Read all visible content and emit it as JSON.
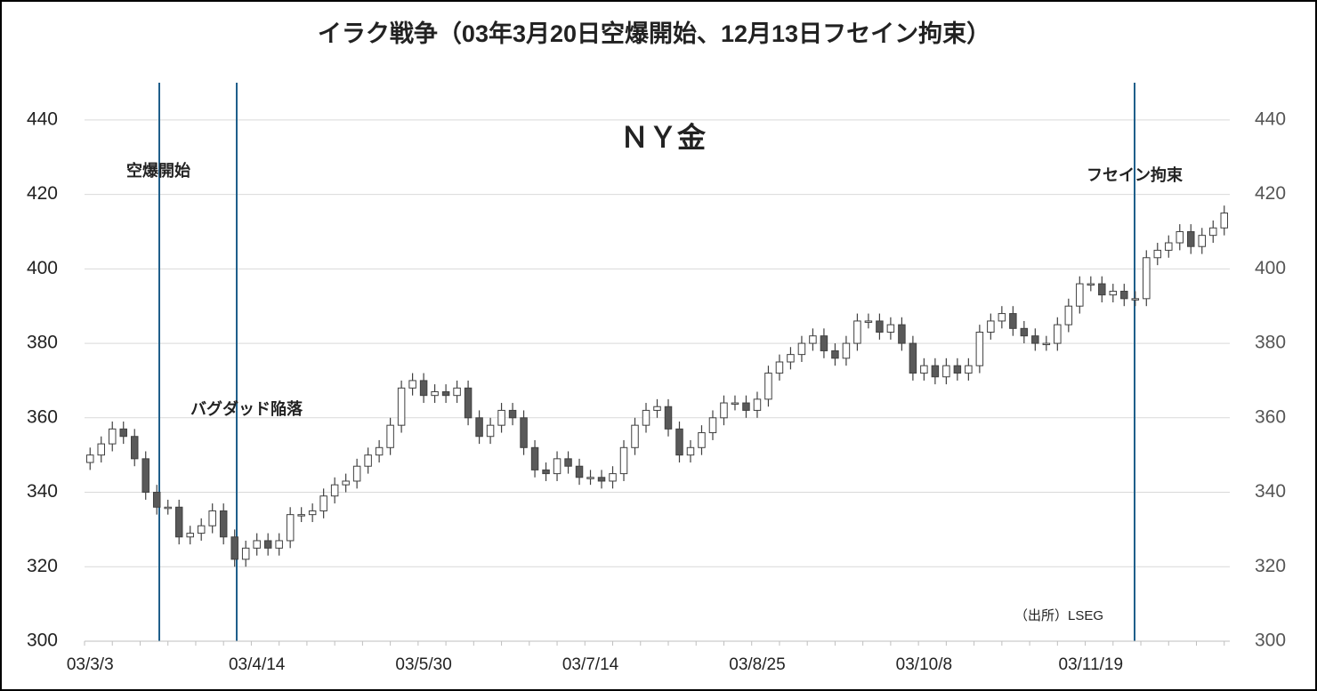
{
  "chart_data": {
    "type": "candlestick",
    "title": "イラク戦争（03年3月20日空爆開始、12月13日フセイン拘束）",
    "subtitle": "ＮＹ金",
    "source": "（出所）LSEG",
    "annotations": [
      "空爆開始",
      "バグダッド陥落",
      "フセイン拘束"
    ],
    "categories": [
      "03/3/3",
      null,
      null,
      null,
      null,
      null,
      null,
      null,
      null,
      null,
      null,
      null,
      null,
      null,
      null,
      "03/4/14",
      null,
      null,
      null,
      null,
      null,
      null,
      null,
      null,
      null,
      null,
      null,
      null,
      null,
      null,
      "03/5/30",
      null,
      null,
      null,
      null,
      null,
      null,
      null,
      null,
      null,
      null,
      null,
      null,
      null,
      null,
      "03/7/14",
      null,
      null,
      null,
      null,
      null,
      null,
      null,
      null,
      null,
      null,
      null,
      null,
      null,
      null,
      "03/8/25",
      null,
      null,
      null,
      null,
      null,
      null,
      null,
      null,
      null,
      null,
      null,
      null,
      null,
      null,
      "03/10/8",
      null,
      null,
      null,
      null,
      null,
      null,
      null,
      null,
      null,
      null,
      null,
      null,
      null,
      null,
      "03/11/19",
      null,
      null,
      null,
      null,
      null,
      null,
      null,
      null,
      null,
      null,
      null,
      null
    ],
    "open": [
      348,
      350,
      353,
      357,
      355,
      349,
      340,
      336,
      336,
      328,
      329,
      331,
      335,
      328,
      322,
      325,
      327,
      325,
      327,
      334,
      334,
      335,
      339,
      342,
      343,
      347,
      350,
      352,
      358,
      368,
      370,
      366,
      367,
      366,
      368,
      360,
      355,
      358,
      362,
      360,
      352,
      346,
      345,
      349,
      347,
      344,
      344,
      343,
      345,
      352,
      358,
      362,
      363,
      357,
      350,
      352,
      356,
      360,
      364,
      364,
      362,
      365,
      372,
      375,
      377,
      380,
      382,
      378,
      376,
      380,
      386,
      386,
      383,
      385,
      380,
      372,
      374,
      371,
      374,
      372,
      374,
      383,
      386,
      388,
      384,
      382,
      380,
      380,
      385,
      390,
      396,
      396,
      393,
      394,
      392,
      392,
      403,
      405,
      407,
      410,
      406,
      409,
      411
    ],
    "high": [
      352,
      355,
      359,
      359,
      357,
      351,
      342,
      338,
      338,
      331,
      333,
      337,
      337,
      330,
      327,
      329,
      329,
      329,
      336,
      336,
      337,
      341,
      344,
      345,
      349,
      352,
      354,
      360,
      370,
      372,
      372,
      369,
      369,
      370,
      370,
      362,
      360,
      364,
      364,
      362,
      354,
      348,
      351,
      351,
      349,
      346,
      346,
      347,
      354,
      360,
      364,
      365,
      365,
      359,
      354,
      358,
      362,
      366,
      366,
      366,
      367,
      374,
      377,
      379,
      382,
      384,
      384,
      380,
      382,
      388,
      388,
      388,
      387,
      387,
      382,
      376,
      376,
      376,
      376,
      376,
      385,
      388,
      390,
      390,
      386,
      384,
      382,
      387,
      392,
      398,
      398,
      398,
      396,
      396,
      394,
      405,
      407,
      409,
      412,
      412,
      411,
      413,
      417
    ],
    "low": [
      346,
      348,
      351,
      353,
      347,
      338,
      334,
      334,
      326,
      326,
      327,
      329,
      326,
      320,
      320,
      323,
      323,
      323,
      325,
      332,
      332,
      333,
      337,
      340,
      341,
      345,
      348,
      350,
      356,
      366,
      364,
      364,
      364,
      364,
      358,
      353,
      353,
      356,
      358,
      350,
      344,
      343,
      343,
      345,
      342,
      342,
      341,
      341,
      343,
      350,
      356,
      360,
      355,
      348,
      348,
      350,
      354,
      358,
      362,
      360,
      360,
      363,
      370,
      373,
      375,
      378,
      376,
      374,
      374,
      378,
      384,
      381,
      381,
      378,
      370,
      370,
      369,
      369,
      370,
      370,
      372,
      381,
      384,
      382,
      380,
      378,
      378,
      378,
      383,
      388,
      394,
      391,
      391,
      390,
      390,
      390,
      401,
      403,
      405,
      404,
      404,
      407,
      409
    ],
    "close": [
      350,
      353,
      357,
      355,
      349,
      340,
      336,
      336,
      328,
      329,
      331,
      335,
      328,
      322,
      325,
      327,
      325,
      327,
      334,
      334,
      335,
      339,
      342,
      343,
      347,
      350,
      352,
      358,
      368,
      370,
      366,
      367,
      366,
      368,
      360,
      355,
      358,
      362,
      360,
      352,
      346,
      345,
      349,
      347,
      344,
      344,
      343,
      345,
      352,
      358,
      362,
      363,
      357,
      350,
      352,
      356,
      360,
      364,
      364,
      362,
      365,
      372,
      375,
      377,
      380,
      382,
      378,
      376,
      380,
      386,
      386,
      383,
      385,
      380,
      372,
      374,
      371,
      374,
      372,
      374,
      383,
      386,
      388,
      384,
      382,
      380,
      380,
      385,
      390,
      396,
      396,
      393,
      394,
      392,
      392,
      403,
      405,
      407,
      410,
      406,
      409,
      411,
      415
    ],
    "up_color": "#ffffff",
    "down_color": "#595959",
    "line_color": "#404040",
    "event_color": "#1f5f8b",
    "ylim": [
      300,
      450
    ],
    "yticks": [
      300,
      320,
      340,
      360,
      380,
      400,
      420,
      440
    ],
    "grid": true
  }
}
